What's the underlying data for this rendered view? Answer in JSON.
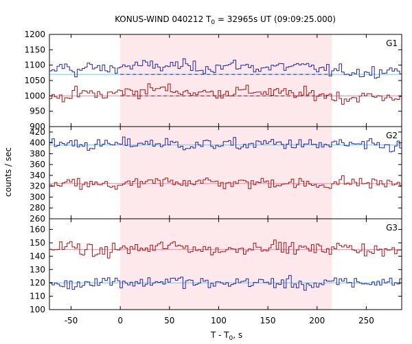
{
  "chart_data": {
    "type": "line",
    "title": "KONUS-WIND 040212 T",
    "title_sub": "0",
    "title_rest": " = 32965s UT (09:09:25.000)",
    "xlabel": "T - T",
    "xlabel_sub": "0",
    "xlabel_rest": ", s",
    "ylabel": "counts / sec",
    "xlim": [
      -72,
      286
    ],
    "x_ticks": [
      -50,
      0,
      50,
      100,
      150,
      200,
      250
    ],
    "x_tick_labels": [
      "-50",
      "0",
      "50",
      "100",
      "150",
      "200",
      "250"
    ],
    "highlight_interval": [
      0,
      215
    ],
    "highlight_color": "#fde8ec",
    "panels": [
      {
        "name": "G1",
        "ylim": [
          900,
          1200
        ],
        "y_ticks": [
          900,
          950,
          1000,
          1050,
          1100,
          1150,
          1200
        ],
        "y_tick_labels": [
          "900",
          "950",
          "1000",
          "1050",
          "1100",
          "1150",
          "1200"
        ],
        "series": [
          {
            "color": "#2222aa",
            "background_level": 1070,
            "background_color": "#66ccee",
            "dashed_level": 1070,
            "dashed_interval": [
              0,
              215
            ],
            "sampled": [
              [
                -72,
                1065
              ],
              [
                -60,
                1100
              ],
              [
                -45,
                1080
              ],
              [
                -30,
                1095
              ],
              [
                -15,
                1085
              ],
              [
                0,
                1095
              ],
              [
                20,
                1100
              ],
              [
                40,
                1095
              ],
              [
                60,
                1100
              ],
              [
                80,
                1090
              ],
              [
                100,
                1095
              ],
              [
                120,
                1100
              ],
              [
                140,
                1090
              ],
              [
                160,
                1095
              ],
              [
                180,
                1095
              ],
              [
                200,
                1090
              ],
              [
                215,
                1080
              ],
              [
                230,
                1080
              ],
              [
                250,
                1075
              ],
              [
                270,
                1085
              ],
              [
                286,
                1085
              ]
            ]
          },
          {
            "color": "#aa1111",
            "background_level": 1000,
            "background_color": "#ee88aa",
            "dashed_level": 1000,
            "dashed_interval": [
              0,
              215
            ],
            "sampled": [
              [
                -72,
                985
              ],
              [
                -60,
                1000
              ],
              [
                -45,
                1005
              ],
              [
                -30,
                1010
              ],
              [
                -15,
                1000
              ],
              [
                0,
                1015
              ],
              [
                20,
                1015
              ],
              [
                40,
                1025
              ],
              [
                60,
                1015
              ],
              [
                80,
                1010
              ],
              [
                100,
                1010
              ],
              [
                120,
                1015
              ],
              [
                140,
                1015
              ],
              [
                160,
                1010
              ],
              [
                180,
                1005
              ],
              [
                200,
                1005
              ],
              [
                215,
                1000
              ],
              [
                230,
                990
              ],
              [
                250,
                1000
              ],
              [
                270,
                995
              ],
              [
                286,
                1000
              ]
            ]
          }
        ]
      },
      {
        "name": "G2",
        "ylim": [
          260,
          430
        ],
        "y_ticks": [
          260,
          280,
          300,
          320,
          340,
          360,
          380,
          400,
          420
        ],
        "y_tick_labels": [
          "260",
          "280",
          "300",
          "320",
          "340",
          "360",
          "380",
          "400",
          "420"
        ],
        "series": [
          {
            "color": "#2222aa",
            "background_level": 396,
            "background_color": "#66ccee",
            "sampled": [
              [
                -72,
                395
              ],
              [
                -50,
                400
              ],
              [
                -25,
                395
              ],
              [
                0,
                398
              ],
              [
                25,
                400
              ],
              [
                50,
                398
              ],
              [
                75,
                395
              ],
              [
                100,
                398
              ],
              [
                125,
                395
              ],
              [
                150,
                400
              ],
              [
                175,
                398
              ],
              [
                200,
                395
              ],
              [
                225,
                398
              ],
              [
                250,
                395
              ],
              [
                286,
                392
              ]
            ]
          },
          {
            "color": "#aa1111",
            "background_level": 325,
            "background_color": "#ee88aa",
            "sampled": [
              [
                -72,
                320
              ],
              [
                -50,
                325
              ],
              [
                -25,
                322
              ],
              [
                0,
                322
              ],
              [
                25,
                325
              ],
              [
                50,
                328
              ],
              [
                75,
                330
              ],
              [
                100,
                326
              ],
              [
                125,
                325
              ],
              [
                150,
                328
              ],
              [
                175,
                326
              ],
              [
                200,
                322
              ],
              [
                225,
                328
              ],
              [
                250,
                326
              ],
              [
                286,
                325
              ]
            ]
          }
        ]
      },
      {
        "name": "G3",
        "ylim": [
          100,
          168
        ],
        "y_ticks": [
          100,
          110,
          120,
          130,
          140,
          150,
          160
        ],
        "y_tick_labels": [
          "100",
          "110",
          "120",
          "130",
          "140",
          "150",
          "160"
        ],
        "series": [
          {
            "color": "#aa1111",
            "background_level": 145,
            "background_color": "#ee88aa",
            "sampled": [
              [
                -72,
                145
              ],
              [
                -50,
                148
              ],
              [
                -25,
                142
              ],
              [
                0,
                146
              ],
              [
                25,
                145
              ],
              [
                50,
                148
              ],
              [
                75,
                146
              ],
              [
                100,
                144
              ],
              [
                125,
                146
              ],
              [
                150,
                148
              ],
              [
                175,
                146
              ],
              [
                200,
                145
              ],
              [
                225,
                147
              ],
              [
                250,
                145
              ],
              [
                286,
                143
              ]
            ]
          },
          {
            "color": "#2222aa",
            "background_level": 120,
            "background_color": "#66ccee",
            "sampled": [
              [
                -72,
                120
              ],
              [
                -50,
                118
              ],
              [
                -25,
                122
              ],
              [
                0,
                121
              ],
              [
                25,
                120
              ],
              [
                50,
                122
              ],
              [
                75,
                120
              ],
              [
                100,
                119
              ],
              [
                125,
                121
              ],
              [
                150,
                120
              ],
              [
                175,
                120
              ],
              [
                200,
                118
              ],
              [
                225,
                121
              ],
              [
                250,
                120
              ],
              [
                286,
                121
              ]
            ]
          }
        ]
      }
    ]
  }
}
